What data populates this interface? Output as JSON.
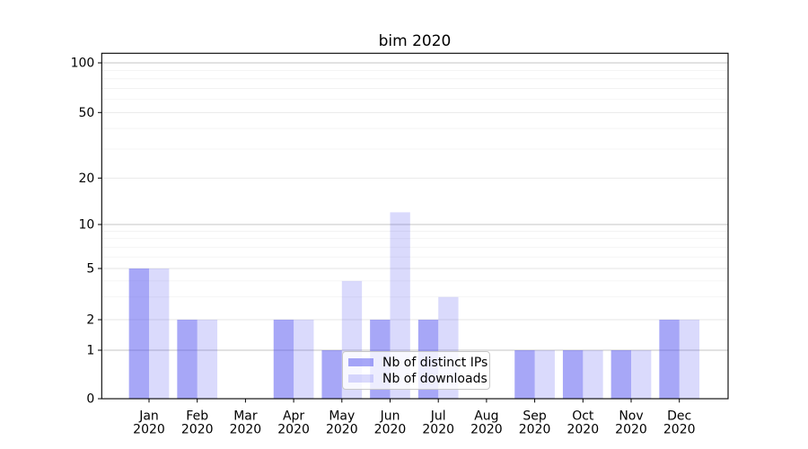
{
  "chart_data": {
    "type": "bar",
    "title": "bim 2020",
    "categories": [
      {
        "month": "Jan",
        "year": "2020"
      },
      {
        "month": "Feb",
        "year": "2020"
      },
      {
        "month": "Mar",
        "year": "2020"
      },
      {
        "month": "Apr",
        "year": "2020"
      },
      {
        "month": "May",
        "year": "2020"
      },
      {
        "month": "Jun",
        "year": "2020"
      },
      {
        "month": "Jul",
        "year": "2020"
      },
      {
        "month": "Aug",
        "year": "2020"
      },
      {
        "month": "Sep",
        "year": "2020"
      },
      {
        "month": "Oct",
        "year": "2020"
      },
      {
        "month": "Nov",
        "year": "2020"
      },
      {
        "month": "Dec",
        "year": "2020"
      }
    ],
    "series": [
      {
        "name": "Nb of distinct IPs",
        "color": "rgba(80,80,240,0.5)",
        "values": [
          5,
          2,
          0,
          2,
          1,
          2,
          2,
          0,
          1,
          1,
          1,
          2
        ]
      },
      {
        "name": "Nb of downloads",
        "color": "rgba(80,80,240,0.21)",
        "values": [
          5,
          2,
          0,
          2,
          4,
          12,
          3,
          0,
          1,
          1,
          1,
          2
        ]
      }
    ],
    "xlabel": "",
    "ylabel": "",
    "yscale": "log-like (0, then logarithmic above 1)",
    "yticks": [
      0,
      1,
      2,
      5,
      10,
      20,
      50,
      100
    ],
    "ylim": [
      0,
      120
    ],
    "grid": "horizontal",
    "legend_position": "lower center inside plot"
  },
  "colors": {
    "bar_base": "#5050f0",
    "axis_frame": "#000000",
    "major_gridline": "#c4c4c4",
    "labeled_gridline": "#e6e6e6",
    "minor_gridline": "#f1f1f1",
    "tick_text": "#000000",
    "legend_border": "#c8c8c8"
  }
}
